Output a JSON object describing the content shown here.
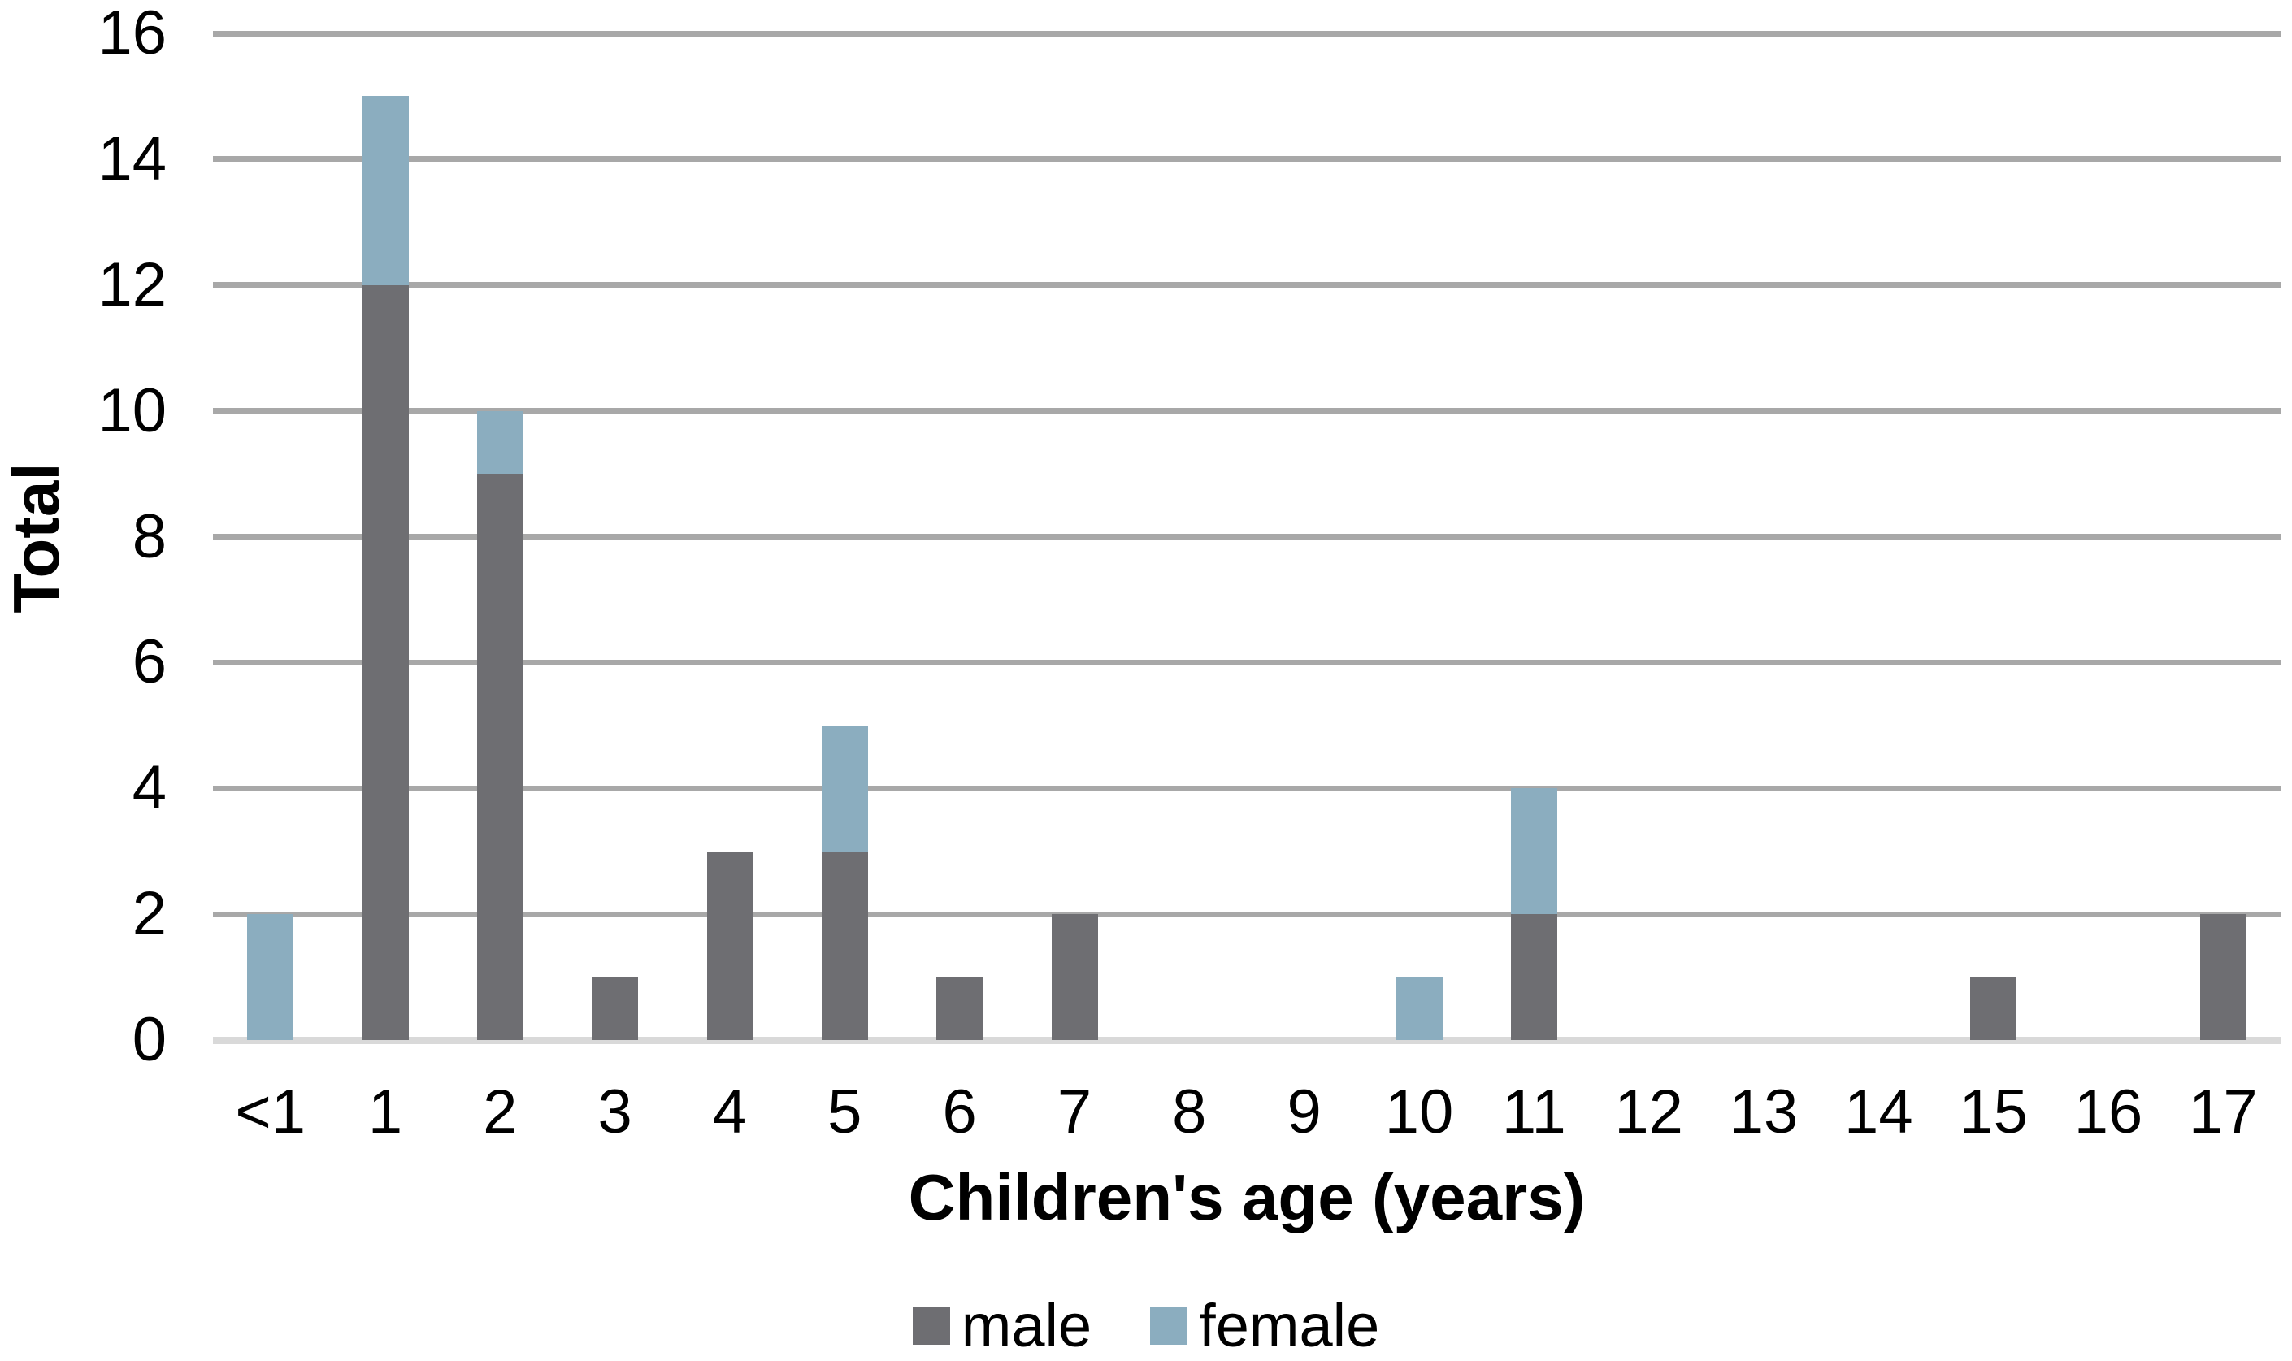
{
  "chart_data": {
    "type": "bar",
    "stacked": true,
    "title": "",
    "xlabel": "Children's age (years)",
    "ylabel": "Total",
    "categories": [
      "<1",
      "1",
      "2",
      "3",
      "4",
      "5",
      "6",
      "7",
      "8",
      "9",
      "10",
      "11",
      "12",
      "13",
      "14",
      "15",
      "16",
      "17"
    ],
    "series": [
      {
        "name": "male",
        "color": "#6e6e72",
        "values": [
          0,
          12,
          9,
          1,
          3,
          3,
          1,
          2,
          0,
          0,
          0,
          2,
          0,
          0,
          0,
          1,
          0,
          2
        ]
      },
      {
        "name": "female",
        "color": "#8badbf",
        "values": [
          2,
          3,
          1,
          0,
          0,
          2,
          0,
          0,
          0,
          0,
          1,
          2,
          0,
          0,
          0,
          0,
          0,
          0
        ]
      }
    ],
    "ylim": [
      0,
      16
    ],
    "ytick_step": 2,
    "yticks": [
      0,
      2,
      4,
      6,
      8,
      10,
      12,
      14,
      16
    ],
    "grid": "horizontal",
    "legend_position": "bottom"
  },
  "palette": {
    "gridline": "#a8a8a8",
    "axis_line": "#d9d9d9",
    "text": "#000000",
    "background": "#ffffff"
  }
}
